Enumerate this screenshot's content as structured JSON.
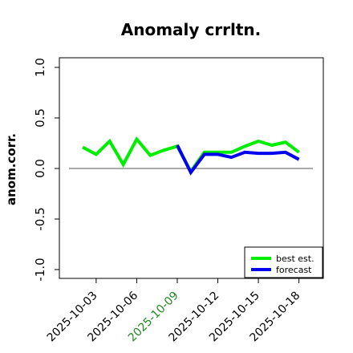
{
  "chart_data": {
    "type": "line",
    "title": "Anomaly crrltn.",
    "ylabel": "anom.corr.",
    "xlabel": "",
    "ylim": [
      -1.1,
      1.1
    ],
    "yticks": [
      -1.0,
      -0.5,
      0.0,
      0.5,
      1.0
    ],
    "ytick_labels": [
      "-1.0",
      "-0.5",
      "0.0",
      "0.5",
      "1.0"
    ],
    "xticks": [
      "2025-10-03",
      "2025-10-06",
      "2025-10-09",
      "2025-10-12",
      "2025-10-15",
      "2025-10-18"
    ],
    "xtick_labels": [
      "2025-10-03",
      "2025-10-06",
      "2025-10-09",
      "2025-10-12",
      "2025-10-15",
      "2025-10-18"
    ],
    "highlight_tick": "2025-10-09",
    "reference_line": 0.0,
    "legend_position": "bottom-right",
    "x": [
      "2025-10-02",
      "2025-10-03",
      "2025-10-04",
      "2025-10-05",
      "2025-10-06",
      "2025-10-07",
      "2025-10-08",
      "2025-10-09",
      "2025-10-10",
      "2025-10-11",
      "2025-10-12",
      "2025-10-13",
      "2025-10-14",
      "2025-10-15",
      "2025-10-16",
      "2025-10-17",
      "2025-10-18"
    ],
    "series": [
      {
        "name": "best est.",
        "color": "#00ee00",
        "values": [
          0.21,
          0.14,
          0.27,
          0.04,
          0.29,
          0.13,
          0.18,
          0.22,
          -0.03,
          0.16,
          0.16,
          0.16,
          0.22,
          0.27,
          0.23,
          0.26,
          0.16
        ]
      },
      {
        "name": "forecast",
        "color": "#0000ee",
        "values": [
          null,
          null,
          null,
          null,
          null,
          null,
          null,
          0.23,
          -0.04,
          0.14,
          0.14,
          0.11,
          0.16,
          0.15,
          0.15,
          0.16,
          0.09
        ]
      }
    ],
    "colors": {
      "axis": "#000000",
      "reference": "#555555",
      "highlight_tick": "#228b22"
    }
  }
}
